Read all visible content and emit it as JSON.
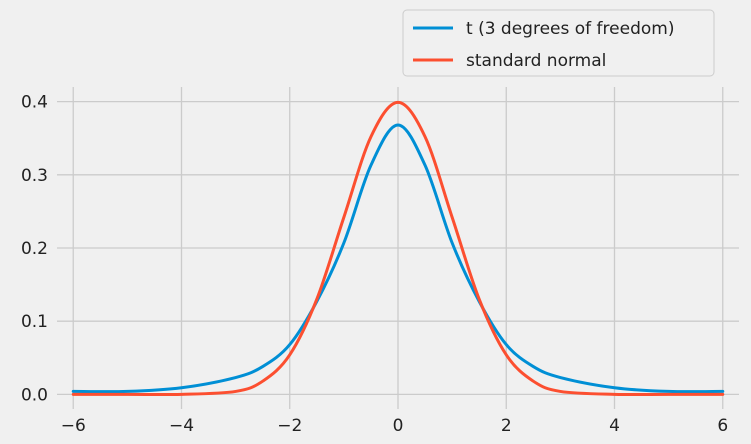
{
  "chart_data": {
    "type": "line",
    "title": "",
    "xlabel": "",
    "ylabel": "",
    "xlim": [
      -6.3,
      6.3
    ],
    "ylim": [
      -0.02,
      0.42
    ],
    "grid": true,
    "legend_position": "top-right (above plot)",
    "x_ticks": [
      -6,
      -4,
      -2,
      0,
      2,
      4,
      6
    ],
    "x_tick_labels": [
      "−6",
      "−4",
      "−2",
      "0",
      "2",
      "4",
      "6"
    ],
    "y_ticks": [
      0.0,
      0.1,
      0.2,
      0.3,
      0.4
    ],
    "y_tick_labels": [
      "0.0",
      "0.1",
      "0.2",
      "0.3",
      "0.4"
    ],
    "series": [
      {
        "name": "t (3 degrees of freedom)",
        "color": "#008fd5",
        "x": [
          -6,
          -5,
          -4,
          -3,
          -2.5,
          -2,
          -1.5,
          -1,
          -0.5,
          0,
          0.5,
          1,
          1.5,
          2,
          2.5,
          3,
          4,
          5,
          6
        ],
        "y": [
          0.004,
          0.004,
          0.009,
          0.023,
          0.038,
          0.068,
          0.127,
          0.207,
          0.313,
          0.368,
          0.313,
          0.207,
          0.127,
          0.068,
          0.038,
          0.023,
          0.009,
          0.004,
          0.004
        ]
      },
      {
        "name": "standard normal",
        "color": "#fc4f30",
        "x": [
          -6,
          -5,
          -4,
          -3,
          -2.5,
          -2,
          -1.5,
          -1,
          -0.5,
          0,
          0.5,
          1,
          1.5,
          2,
          2.5,
          3,
          4,
          5,
          6
        ],
        "y": [
          0.0,
          0.0,
          0.0,
          0.004,
          0.018,
          0.054,
          0.13,
          0.242,
          0.352,
          0.399,
          0.352,
          0.242,
          0.13,
          0.054,
          0.018,
          0.004,
          0.0,
          0.0,
          0.0
        ]
      }
    ]
  }
}
